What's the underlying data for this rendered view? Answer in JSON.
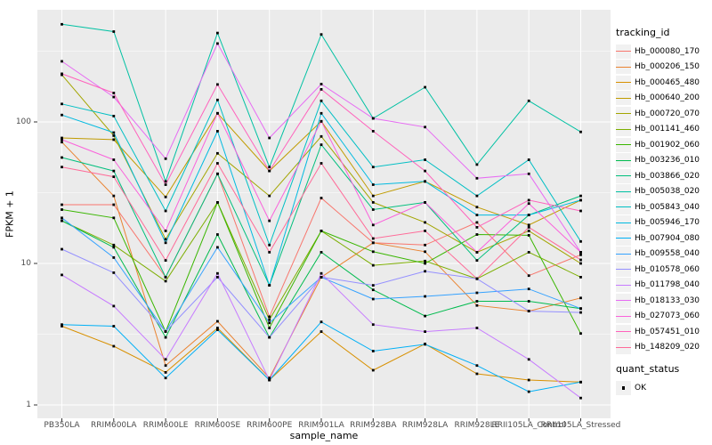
{
  "chart_data": {
    "type": "line",
    "title": "",
    "xlabel": "sample_name",
    "ylabel": "FPKM + 1",
    "y_scale": "log10",
    "y_ticks": [
      1,
      10,
      100
    ],
    "y_minor_gridlines": [
      3.162,
      31.62,
      316.2
    ],
    "ylim": [
      0.8,
      620
    ],
    "grid": true,
    "legend_position": "right",
    "legend_title": "tracking_id",
    "legend2_title": "quant_status",
    "legend2_items": [
      {
        "label": "OK",
        "marker": "black-square",
        "color": "#000000"
      }
    ],
    "point_marker": "black-square",
    "panel_bg": "#EBEBEB",
    "grid_color": "#FFFFFF",
    "x_categories": [
      "PB350LA",
      "RRIM600LA",
      "RRIM600LE",
      "RRIM600SE",
      "RRIM600PE",
      "RRIM901LA",
      "RRIM928BA",
      "RRIM928LA",
      "RRIM928LE",
      "RRII105LA_Control",
      "RRII105LA_Stressed"
    ],
    "series": [
      {
        "name": "Hb_000080_170",
        "color": "#F8766D",
        "values": [
          26,
          26,
          8,
          43,
          4.2,
          29,
          14,
          13.5,
          19.5,
          8.2,
          11.5
        ]
      },
      {
        "name": "Hb_000206_150",
        "color": "#EA8331",
        "values": [
          72,
          30,
          1.9,
          3.9,
          1.55,
          8,
          14,
          12.1,
          5.05,
          4.6,
          5.7
        ]
      },
      {
        "name": "Hb_000465_480",
        "color": "#D89000",
        "values": [
          3.6,
          2.6,
          1.7,
          3.5,
          1.5,
          3.3,
          1.76,
          2.7,
          1.66,
          1.5,
          1.45
        ]
      },
      {
        "name": "Hb_000640_200",
        "color": "#C09B00",
        "values": [
          77,
          75,
          29.5,
          115,
          45,
          101,
          30,
          38,
          25,
          18.7,
          28
        ]
      },
      {
        "name": "Hb_000720_070",
        "color": "#A3A500",
        "values": [
          215,
          80,
          14.8,
          60,
          30,
          79,
          27,
          19.5,
          12,
          17,
          10
        ]
      },
      {
        "name": "Hb_001141_460",
        "color": "#7CAE00",
        "values": [
          20,
          13.5,
          7.5,
          27,
          4.0,
          17,
          9.7,
          10.4,
          7.8,
          12,
          8
        ]
      },
      {
        "name": "Hb_001902_060",
        "color": "#39B600",
        "values": [
          24,
          21,
          3.3,
          27,
          3.5,
          17,
          12.1,
          10,
          16,
          15.8,
          3.2
        ]
      },
      {
        "name": "Hb_003236_010",
        "color": "#00BB4E",
        "values": [
          20,
          13,
          3.0,
          16,
          3.0,
          12,
          6.5,
          4.25,
          5.4,
          5.4,
          4.8
        ]
      },
      {
        "name": "Hb_003866_020",
        "color": "#00BF7D",
        "values": [
          56,
          45,
          8,
          43,
          7,
          69,
          24,
          27,
          10.5,
          22,
          30
        ]
      },
      {
        "name": "Hb_005038_020",
        "color": "#00C1A3",
        "values": [
          490,
          435,
          38,
          425,
          48,
          415,
          106,
          176,
          50,
          141,
          85
        ]
      },
      {
        "name": "Hb_005843_040",
        "color": "#00BFC4",
        "values": [
          134,
          110,
          23.5,
          143,
          13.5,
          141,
          48,
          54,
          30,
          54,
          14.3
        ]
      },
      {
        "name": "Hb_005946_170",
        "color": "#00BAE0",
        "values": [
          112,
          84,
          14,
          86,
          7,
          115,
          36,
          38,
          22,
          22,
          28
        ]
      },
      {
        "name": "Hb_007904_080",
        "color": "#00B0F6",
        "values": [
          3.7,
          3.6,
          1.55,
          3.4,
          1.5,
          3.86,
          2.4,
          2.68,
          1.9,
          1.24,
          1.45
        ]
      },
      {
        "name": "Hb_009558_040",
        "color": "#35A2FF",
        "values": [
          21,
          11,
          3.3,
          13,
          3.8,
          8,
          5.6,
          5.85,
          6.2,
          6.6,
          4.8
        ]
      },
      {
        "name": "Hb_010578_060",
        "color": "#9590FF",
        "values": [
          12.6,
          8.6,
          3.3,
          8,
          3.0,
          8,
          7,
          8.8,
          7.8,
          4.6,
          4.5
        ]
      },
      {
        "name": "Hb_011798_040",
        "color": "#C77CFF",
        "values": [
          8.3,
          5.0,
          2.1,
          8.5,
          1.5,
          8.5,
          3.7,
          3.3,
          3.5,
          2.1,
          1.12
        ]
      },
      {
        "name": "Hb_018133_030",
        "color": "#E76BF3",
        "values": [
          268,
          150,
          55,
          358,
          77,
          185,
          106,
          92,
          40,
          43,
          12
        ]
      },
      {
        "name": "Hb_027073_060",
        "color": "#FA62DB",
        "values": [
          75,
          54,
          17,
          115,
          20,
          101,
          18.7,
          27,
          12,
          26.5,
          12
        ]
      },
      {
        "name": "Hb_057451_010",
        "color": "#FF62BC",
        "values": [
          219,
          160,
          36,
          184,
          45,
          170,
          86,
          45,
          18,
          28,
          23.5
        ]
      },
      {
        "name": "Hb_148209_020",
        "color": "#FF6A98",
        "values": [
          48,
          41,
          10.5,
          51,
          12,
          51,
          15,
          17,
          7.8,
          18,
          10.6
        ]
      }
    ]
  }
}
